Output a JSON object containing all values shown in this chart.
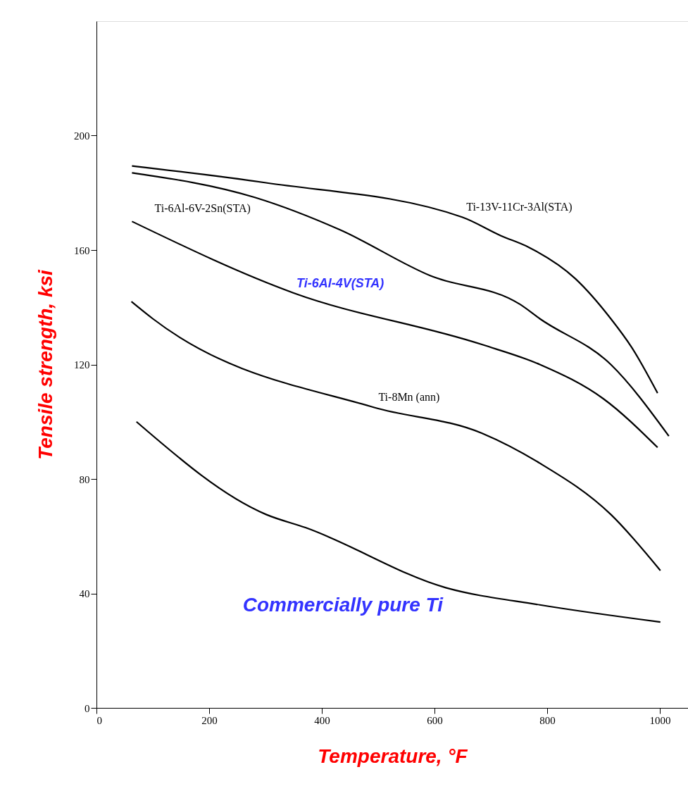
{
  "chart_data": {
    "type": "line",
    "xlabel": "Temperature, °F",
    "ylabel": "Tensile strength, ksi",
    "xlim": [
      0,
      1050
    ],
    "xticks": [
      0,
      200,
      400,
      600,
      800,
      1000
    ],
    "ylim": [
      0,
      240
    ],
    "yticks": [
      0,
      40,
      80,
      120,
      160,
      200
    ],
    "grid": false,
    "marker": "none",
    "line_style": "solid",
    "series": [
      {
        "name": "Ti-13V-11Cr-3Al(STA)",
        "color": "#000000",
        "x": [
          63,
          301,
          649,
          718,
          767,
          850,
          913,
          950,
          996
        ],
        "values": [
          189.4,
          183.5,
          171.5,
          165,
          161,
          150,
          136,
          126,
          110
        ]
      },
      {
        "name": "Ti-6Al-6V-2Sn(STA)",
        "color": "#000000",
        "x": [
          63,
          281,
          433,
          593,
          752,
          787,
          913,
          1016
        ],
        "values": [
          187,
          178.4,
          167,
          151,
          141,
          136,
          120,
          95
        ]
      },
      {
        "name": "Ti-6Al-4V(STA)",
        "color": "#000000",
        "x": [
          63,
          350,
          684,
          787,
          900,
          996
        ],
        "values": [
          170,
          145,
          127,
          120,
          108,
          91
        ]
      },
      {
        "name": "Ti-8Mn (ann)",
        "color": "#000000",
        "x": [
          62,
          100,
          493,
          684,
          787,
          913,
          1001
        ],
        "values": [
          142,
          136,
          105,
          96,
          85.5,
          67.6,
          48
        ]
      },
      {
        "name": "Commercially pure Ti",
        "color": "#000000",
        "x": [
          71,
          301,
          371,
          620,
          787,
          1001
        ],
        "values": [
          100,
          67.6,
          63,
          42,
          36,
          30
        ]
      }
    ]
  }
}
